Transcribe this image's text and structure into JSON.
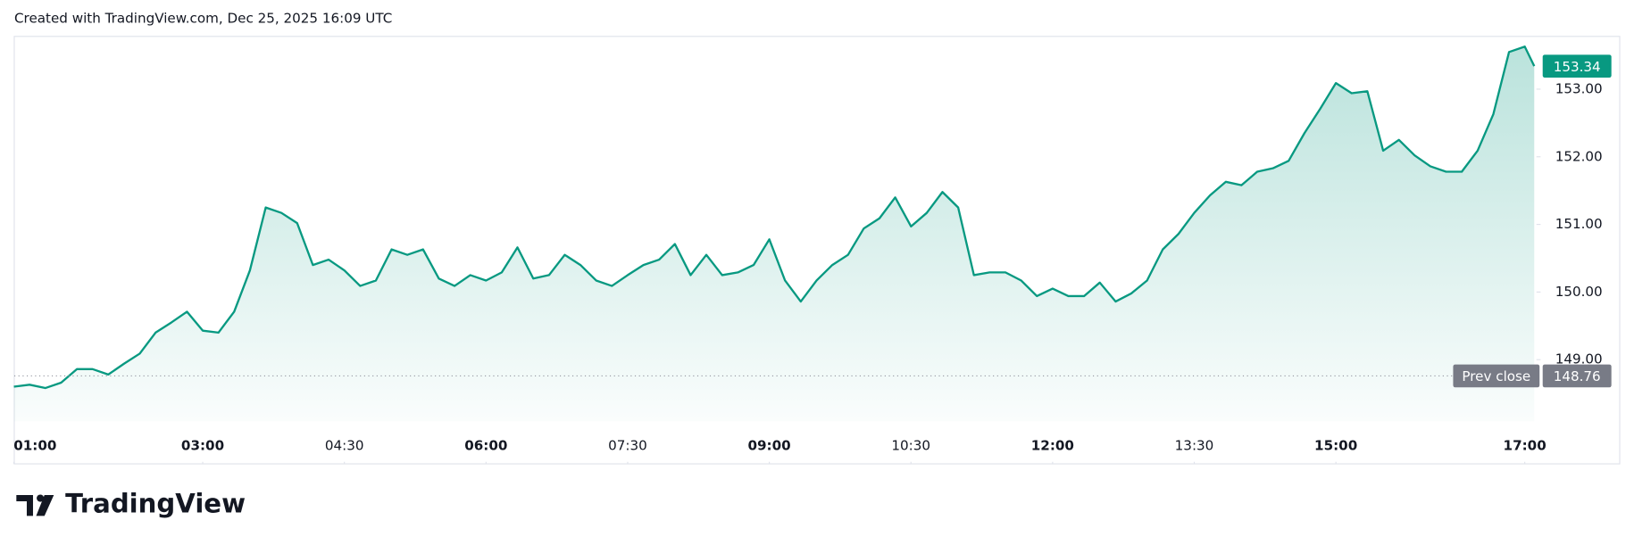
{
  "chart_data": {
    "type": "line",
    "title": "Created with TradingView.com, Dec 25, 2025 16:09 UTC",
    "brand": "TradingView",
    "x": [
      "01:00",
      "01:10",
      "01:20",
      "01:30",
      "01:40",
      "01:50",
      "02:00",
      "02:10",
      "02:20",
      "02:30",
      "02:40",
      "02:50",
      "03:00",
      "03:10",
      "03:20",
      "03:30",
      "03:40",
      "03:50",
      "04:00",
      "04:10",
      "04:20",
      "04:30",
      "04:40",
      "04:50",
      "05:00",
      "05:10",
      "05:20",
      "05:30",
      "05:40",
      "05:50",
      "06:00",
      "06:10",
      "06:20",
      "06:30",
      "06:40",
      "06:50",
      "07:00",
      "07:10",
      "07:20",
      "07:30",
      "07:40",
      "07:50",
      "08:00",
      "08:10",
      "08:20",
      "08:30",
      "08:40",
      "08:50",
      "09:00",
      "09:10",
      "09:20",
      "09:30",
      "09:40",
      "09:50",
      "10:00",
      "10:10",
      "10:20",
      "10:30",
      "10:40",
      "10:50",
      "11:00",
      "11:10",
      "11:20",
      "11:30",
      "11:40",
      "11:50",
      "12:00",
      "12:10",
      "12:20",
      "12:30",
      "12:40",
      "12:50",
      "13:00",
      "13:10",
      "13:20",
      "13:30",
      "13:40",
      "13:50",
      "14:00",
      "14:10",
      "14:20",
      "14:30",
      "14:40",
      "14:50",
      "15:00",
      "15:10",
      "15:20",
      "15:30",
      "15:40",
      "15:50",
      "16:00",
      "16:10",
      "16:20",
      "16:30",
      "16:40",
      "16:50",
      "17:00",
      "17:06"
    ],
    "series": [
      {
        "color": "#089981",
        "values": [
          148.6,
          148.63,
          148.58,
          148.66,
          148.86,
          148.86,
          148.78,
          148.94,
          149.09,
          149.4,
          149.55,
          149.71,
          149.43,
          149.4,
          149.71,
          150.32,
          151.25,
          151.17,
          151.02,
          150.4,
          150.48,
          150.32,
          150.09,
          150.17,
          150.63,
          150.55,
          150.63,
          150.2,
          150.09,
          150.25,
          150.17,
          150.29,
          150.66,
          150.2,
          150.25,
          150.55,
          150.4,
          150.17,
          150.09,
          150.25,
          150.4,
          150.48,
          150.71,
          150.25,
          150.55,
          150.25,
          150.29,
          150.4,
          150.78,
          150.17,
          149.86,
          150.17,
          150.4,
          150.55,
          150.94,
          151.09,
          151.4,
          150.97,
          151.17,
          151.48,
          151.25,
          150.25,
          150.29,
          150.29,
          150.17,
          149.94,
          150.05,
          149.94,
          149.94,
          150.14,
          149.86,
          149.98,
          150.17,
          150.63,
          150.86,
          151.17,
          151.43,
          151.63,
          151.58,
          151.78,
          151.83,
          151.94,
          152.35,
          152.71,
          153.09,
          152.94,
          152.97,
          152.09,
          152.25,
          152.02,
          151.86,
          151.78,
          151.78,
          152.09,
          152.63,
          153.55,
          153.63,
          153.34
        ]
      }
    ],
    "xticks": [
      "01:00",
      "03:00",
      "04:30",
      "06:00",
      "07:30",
      "09:00",
      "10:30",
      "12:00",
      "13:30",
      "15:00",
      "17:00"
    ],
    "ylim": [
      148.09,
      153.78
    ],
    "yticks": [
      {
        "value": 149,
        "label": "149.00"
      },
      {
        "value": 150,
        "label": "150.00"
      },
      {
        "value": 151,
        "label": "151.00"
      },
      {
        "value": 152,
        "label": "152.00"
      },
      {
        "value": 153,
        "label": "153.00"
      }
    ],
    "prev_close_label": "Prev close",
    "prev_close": 148.76,
    "last_price": 153.34
  }
}
